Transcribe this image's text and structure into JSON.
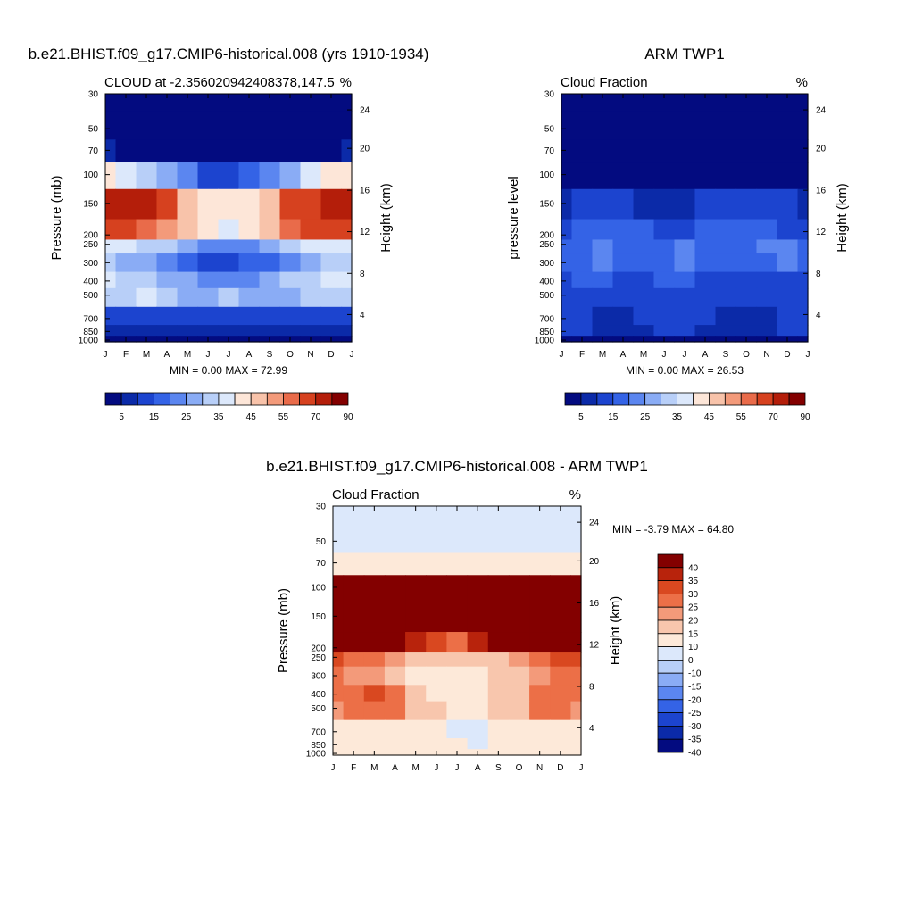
{
  "chart_data": [
    {
      "type": "heatmap",
      "title": "b.e21.BHIST.f09_g17.CMIP6-historical.008 (yrs 1910-1934)",
      "left_subtitle": "CLOUD at -2.356020942408378,147.5",
      "right_subtitle": "%",
      "ylabel": "Pressure (mb)",
      "ylabel_right": "Height (km)",
      "x_ticks": [
        "J",
        "F",
        "M",
        "A",
        "M",
        "J",
        "J",
        "A",
        "S",
        "O",
        "N",
        "D",
        "J"
      ],
      "y_ticks": [
        "30",
        "50",
        "70",
        "100",
        "150",
        "200",
        "250",
        "300",
        "400",
        "500",
        "700",
        "850",
        "1000"
      ],
      "y_right_ticks": [
        "24",
        "20",
        "16",
        "12",
        "8",
        "4"
      ],
      "min_label": "MIN =   0.00 MAX =  72.99",
      "levels": [
        "5",
        "15",
        "25",
        "35",
        "45",
        "55",
        "70",
        "90"
      ],
      "values": [
        [
          0,
          0,
          0,
          0,
          0,
          0,
          0,
          0,
          0,
          0,
          0,
          0,
          0
        ],
        [
          0,
          0,
          0,
          0,
          0,
          0,
          0,
          0,
          0,
          0,
          0,
          0,
          0
        ],
        [
          6,
          4,
          2,
          0,
          0,
          0,
          0,
          0,
          0,
          0,
          2,
          4,
          6
        ],
        [
          40,
          35,
          30,
          25,
          20,
          10,
          12,
          15,
          20,
          28,
          35,
          40,
          40
        ],
        [
          70,
          72,
          70,
          60,
          45,
          40,
          40,
          42,
          45,
          60,
          68,
          72,
          70
        ],
        [
          62,
          60,
          55,
          50,
          45,
          40,
          38,
          40,
          45,
          55,
          60,
          62,
          62
        ],
        [
          38,
          36,
          34,
          30,
          25,
          20,
          20,
          22,
          25,
          30,
          35,
          38,
          38
        ],
        [
          30,
          28,
          25,
          20,
          15,
          12,
          12,
          15,
          18,
          22,
          28,
          30,
          30
        ],
        [
          35,
          32,
          30,
          28,
          25,
          20,
          22,
          24,
          26,
          30,
          32,
          35,
          35
        ],
        [
          30,
          32,
          35,
          30,
          25,
          28,
          30,
          28,
          26,
          28,
          30,
          32,
          30
        ],
        [
          10,
          10,
          10,
          12,
          12,
          10,
          10,
          10,
          12,
          12,
          10,
          10,
          10
        ],
        [
          8,
          8,
          8,
          8,
          8,
          8,
          8,
          8,
          8,
          8,
          8,
          8,
          8
        ],
        [
          2,
          2,
          2,
          2,
          2,
          2,
          2,
          2,
          2,
          2,
          2,
          2,
          2
        ]
      ]
    },
    {
      "type": "heatmap",
      "title": "ARM TWP1",
      "left_subtitle": "Cloud Fraction",
      "right_subtitle": "%",
      "ylabel": "pressure level",
      "ylabel_right": "Height (km)",
      "x_ticks": [
        "J",
        "F",
        "M",
        "A",
        "M",
        "J",
        "J",
        "A",
        "S",
        "O",
        "N",
        "D",
        "J"
      ],
      "y_ticks": [
        "30",
        "50",
        "70",
        "100",
        "150",
        "200",
        "250",
        "300",
        "400",
        "500",
        "700",
        "850",
        "1000"
      ],
      "y_right_ticks": [
        "24",
        "20",
        "16",
        "12",
        "8",
        "4"
      ],
      "min_label": "MIN =   0.00 MAX =  26.53",
      "levels": [
        "5",
        "15",
        "25",
        "35",
        "45",
        "55",
        "70",
        "90"
      ],
      "values": [
        [
          0,
          0,
          0,
          0,
          0,
          0,
          0,
          0,
          0,
          0,
          0,
          0,
          0
        ],
        [
          0,
          0,
          0,
          0,
          0,
          0,
          0,
          0,
          0,
          0,
          0,
          0,
          0
        ],
        [
          0,
          0,
          0,
          0,
          0,
          0,
          0,
          0,
          0,
          0,
          0,
          0,
          0
        ],
        [
          2,
          2,
          2,
          1,
          1,
          1,
          1,
          1,
          1,
          1,
          1,
          2,
          2
        ],
        [
          8,
          10,
          12,
          10,
          8,
          6,
          8,
          10,
          10,
          10,
          12,
          10,
          8
        ],
        [
          14,
          16,
          18,
          16,
          15,
          14,
          14,
          15,
          16,
          18,
          16,
          14,
          14
        ],
        [
          18,
          18,
          20,
          18,
          16,
          17,
          22,
          18,
          18,
          18,
          20,
          20,
          18
        ],
        [
          16,
          18,
          20,
          18,
          16,
          16,
          20,
          18,
          16,
          16,
          18,
          20,
          16
        ],
        [
          14,
          16,
          16,
          14,
          14,
          15,
          15,
          14,
          14,
          14,
          14,
          14,
          14
        ],
        [
          14,
          14,
          12,
          10,
          12,
          13,
          12,
          12,
          14,
          14,
          14,
          14,
          14
        ],
        [
          12,
          12,
          8,
          6,
          10,
          12,
          12,
          12,
          8,
          6,
          8,
          10,
          12
        ],
        [
          10,
          10,
          8,
          6,
          8,
          10,
          10,
          8,
          6,
          6,
          8,
          10,
          10
        ],
        [
          4,
          4,
          4,
          4,
          4,
          4,
          4,
          4,
          4,
          4,
          4,
          4,
          4
        ]
      ]
    },
    {
      "type": "heatmap",
      "title": "b.e21.BHIST.f09_g17.CMIP6-historical.008 - ARM TWP1",
      "left_subtitle": "Cloud Fraction",
      "right_subtitle": "%",
      "ylabel": "Pressure (mb)",
      "ylabel_right": "Height (km)",
      "x_ticks": [
        "J",
        "F",
        "M",
        "A",
        "M",
        "J",
        "J",
        "A",
        "S",
        "O",
        "N",
        "D",
        "J"
      ],
      "y_ticks": [
        "30",
        "50",
        "70",
        "100",
        "150",
        "200",
        "250",
        "300",
        "400",
        "500",
        "700",
        "850",
        "1000"
      ],
      "y_right_ticks": [
        "24",
        "20",
        "16",
        "12",
        "8",
        "4"
      ],
      "min_label": "MIN =  -3.79 MAX =  64.80",
      "levels": [
        "40",
        "35",
        "30",
        "25",
        "20",
        "15",
        "10",
        "0",
        "-10",
        "-15",
        "-20",
        "-25",
        "-30",
        "-35",
        "-40"
      ],
      "values": [
        [
          -2,
          -2,
          -2,
          -2,
          -2,
          -2,
          -2,
          -2,
          -2,
          -2,
          -2,
          -2,
          -2
        ],
        [
          -1,
          -1,
          -1,
          -1,
          -1,
          -1,
          -1,
          -1,
          -1,
          -1,
          -1,
          -1,
          -1
        ],
        [
          8,
          6,
          4,
          3,
          2,
          2,
          2,
          2,
          2,
          3,
          4,
          6,
          8
        ],
        [
          40,
          40,
          40,
          40,
          40,
          40,
          40,
          40,
          40,
          40,
          40,
          40,
          40
        ],
        [
          50,
          52,
          50,
          48,
          45,
          40,
          36,
          42,
          48,
          50,
          52,
          52,
          50
        ],
        [
          42,
          40,
          38,
          35,
          32,
          28,
          24,
          30,
          35,
          38,
          40,
          42,
          42
        ],
        [
          25,
          24,
          22,
          18,
          14,
          10,
          10,
          12,
          14,
          18,
          22,
          25,
          25
        ],
        [
          20,
          18,
          16,
          12,
          8,
          6,
          6,
          8,
          10,
          14,
          18,
          20,
          20
        ],
        [
          22,
          24,
          26,
          20,
          12,
          8,
          6,
          8,
          10,
          14,
          20,
          24,
          22
        ],
        [
          18,
          20,
          24,
          20,
          14,
          10,
          8,
          8,
          10,
          14,
          20,
          22,
          18
        ],
        [
          4,
          4,
          4,
          4,
          4,
          4,
          -2,
          -2,
          4,
          4,
          4,
          4,
          4
        ],
        [
          2,
          2,
          2,
          2,
          2,
          2,
          2,
          -1,
          2,
          2,
          2,
          2,
          2
        ],
        [
          1,
          1,
          1,
          1,
          1,
          1,
          1,
          1,
          1,
          1,
          1,
          1,
          1
        ]
      ]
    }
  ]
}
